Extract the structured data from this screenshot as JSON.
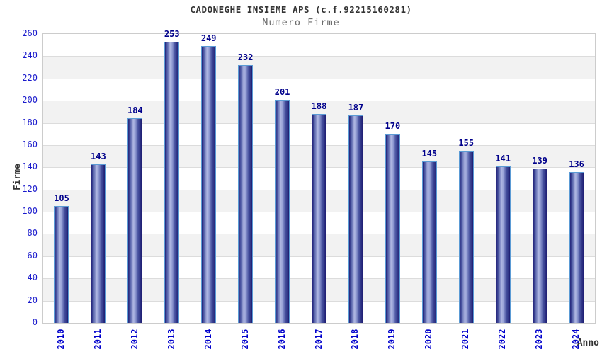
{
  "header": {
    "title": "CADONEGHE INSIEME APS (c.f.92215160281)",
    "subtitle": "Numero Firme"
  },
  "chart_data": {
    "type": "bar",
    "title": "CADONEGHE INSIEME APS (c.f.92215160281)",
    "subtitle": "Numero Firme",
    "xlabel": "Anno",
    "ylabel": "Firme",
    "categories": [
      "2010",
      "2011",
      "2012",
      "2013",
      "2014",
      "2015",
      "2016",
      "2017",
      "2018",
      "2019",
      "2020",
      "2021",
      "2022",
      "2023",
      "2024"
    ],
    "values": [
      105,
      143,
      184,
      253,
      249,
      232,
      201,
      188,
      187,
      170,
      145,
      155,
      141,
      139,
      136
    ],
    "ylim": [
      0,
      260
    ],
    "y_ticks": [
      0,
      20,
      40,
      60,
      80,
      100,
      120,
      140,
      160,
      180,
      200,
      220,
      240,
      260
    ],
    "grid": true,
    "banded_background": true,
    "legend": "none",
    "colors": {
      "tick_label": "#1a1acc",
      "x_tick_label": "#0000cc",
      "value_label": "#00008b",
      "bar_border": "#5b9bd5",
      "bar_dark": "#23237a",
      "bar_mid": "#4d59a4",
      "bar_light": "#aeb6e2",
      "band_gray": "#f2f2f2",
      "band_white": "#ffffff",
      "gridline": "#dcdcdc",
      "plot_border": "#cccccc",
      "title_color": "#333333",
      "subtitle_color": "#6b6b6b"
    }
  }
}
